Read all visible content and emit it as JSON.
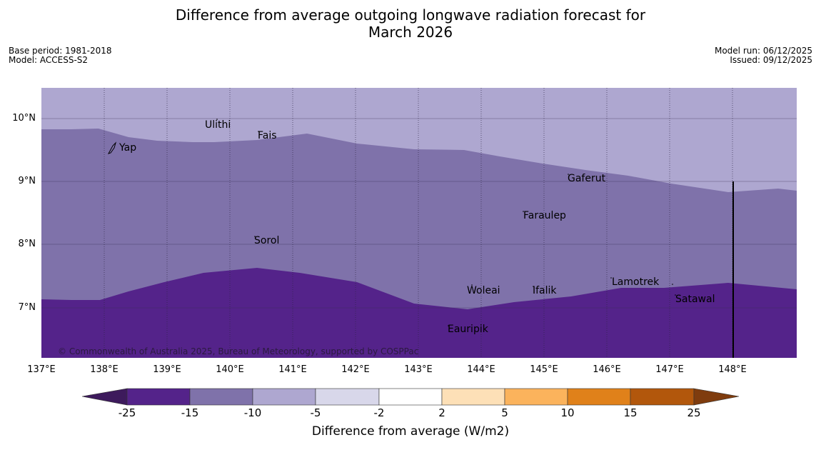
{
  "title_line1": "Difference from average outgoing longwave radiation forecast for",
  "title_line2": "March 2026",
  "base_period": "Base period: 1981-2018",
  "model": "Model: ACCESS-S2",
  "model_run": "Model run: 06/12/2025",
  "issued": "Issued: 09/12/2025",
  "copyright": "© Commonwealth of Australia 2025, Bureau of Meteorology, supported by COSPPac",
  "map": {
    "lon_range": [
      137,
      149
    ],
    "lat_range": [
      6.2,
      10.5
    ],
    "lon_labels": [
      "137°E",
      "138°E",
      "139°E",
      "140°E",
      "141°E",
      "142°E",
      "143°E",
      "144°E",
      "145°E",
      "146°E",
      "147°E",
      "148°E"
    ],
    "lat_labels": [
      "10°N",
      "9°N",
      "8°N",
      "7°N"
    ],
    "places": [
      {
        "name": "Yap",
        "lon": 138.2,
        "lat": 9.52
      },
      {
        "name": "Ulithi",
        "lon": 139.75,
        "lat": 9.9
      },
      {
        "name": "Fais",
        "lon": 140.55,
        "lat": 9.73
      },
      {
        "name": "Gaferut",
        "lon": 145.4,
        "lat": 9.05
      },
      {
        "name": "Faraulep",
        "lon": 144.7,
        "lat": 8.45
      },
      {
        "name": "Sorol",
        "lon": 140.4,
        "lat": 8.05
      },
      {
        "name": "Lamotrek",
        "lon": 146.5,
        "lat": 7.4
      },
      {
        "name": "Woleai",
        "lon": 143.9,
        "lat": 7.25
      },
      {
        "name": "Ifalik",
        "lon": 144.55,
        "lat": 7.25
      },
      {
        "name": "Satawal",
        "lon": 147.1,
        "lat": 7.15
      },
      {
        "name": "Eauripik",
        "lon": 143.7,
        "lat": 6.65
      }
    ]
  },
  "colorbar": {
    "title": "Difference from average (W/m2)",
    "ticks": [
      "-25",
      "-15",
      "-10",
      "-5",
      "-2",
      "2",
      "5",
      "10",
      "15",
      "25"
    ],
    "colors": [
      "#3d1a5c",
      "#54238a",
      "#7f72aa",
      "#aea7d0",
      "#d8d7ea",
      "#ffffff",
      "#fde0b7",
      "#fbb35c",
      "#e0811a",
      "#b2570c",
      "#7f3c0e"
    ]
  }
}
